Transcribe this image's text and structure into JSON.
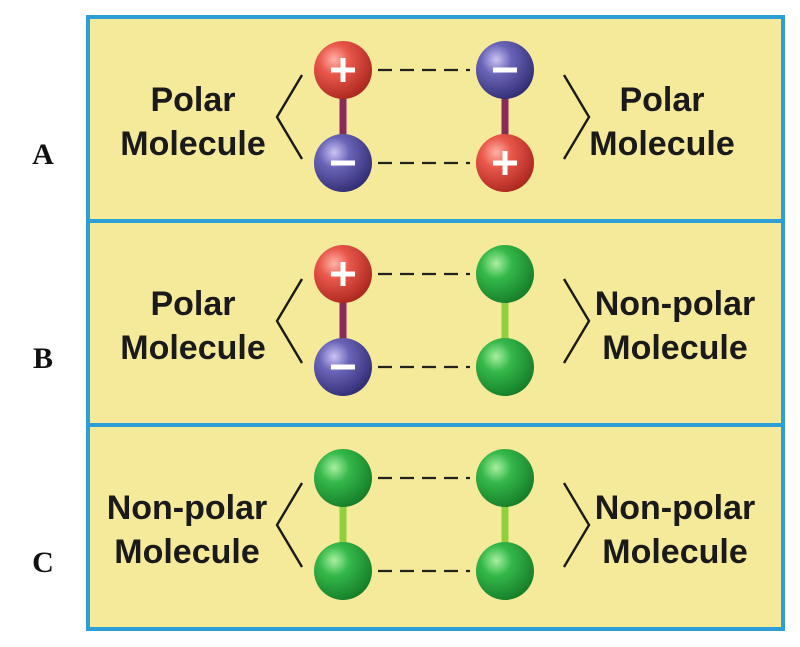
{
  "colors": {
    "panel_fill": "#f5e99a",
    "panel_border": "#2e9fd6",
    "positive_atom": "#e0483d",
    "negative_atom": "#5a55a8",
    "neutral_atom": "#2fb34a",
    "polar_bond": "#8a2a5a",
    "nonpolar_bond": "#8fd13c"
  },
  "rows": [
    {
      "letter": "A",
      "left": {
        "line1": "Polar",
        "line2": "Molecule",
        "top_atom": "positive",
        "bottom_atom": "negative",
        "bond": "polar"
      },
      "right": {
        "line1": "Polar",
        "line2": "Molecule",
        "top_atom": "negative",
        "bottom_atom": "positive",
        "bond": "polar"
      }
    },
    {
      "letter": "B",
      "left": {
        "line1": "Polar",
        "line2": "Molecule",
        "top_atom": "positive",
        "bottom_atom": "negative",
        "bond": "polar"
      },
      "right": {
        "line1": "Non-polar",
        "line2": "Molecule",
        "top_atom": "neutral",
        "bottom_atom": "neutral",
        "bond": "nonpolar"
      }
    },
    {
      "letter": "C",
      "left": {
        "line1": "Non-polar",
        "line2": "Molecule",
        "top_atom": "neutral",
        "bottom_atom": "neutral",
        "bond": "nonpolar"
      },
      "right": {
        "line1": "Non-polar",
        "line2": "Molecule",
        "top_atom": "neutral",
        "bottom_atom": "neutral",
        "bond": "nonpolar"
      }
    }
  ]
}
